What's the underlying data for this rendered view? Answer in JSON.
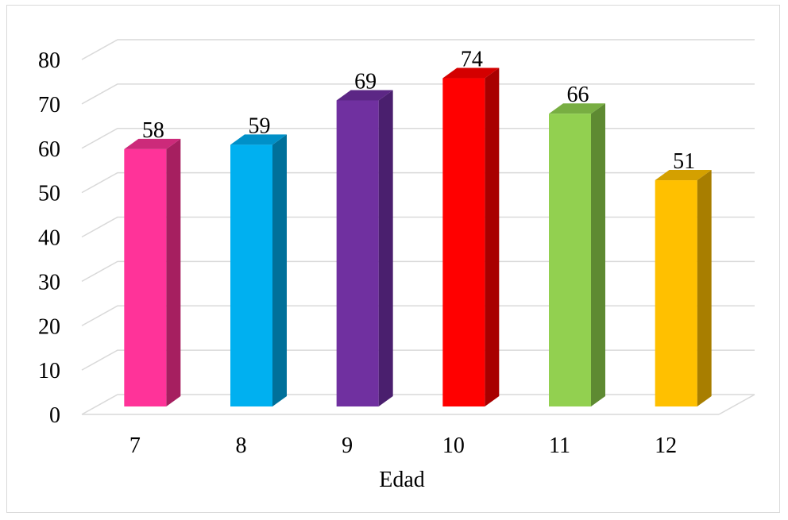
{
  "chart_data": {
    "type": "bar",
    "title": "",
    "xlabel": "Edad",
    "ylabel": "",
    "categories": [
      "7",
      "8",
      "9",
      "10",
      "11",
      "12"
    ],
    "values": [
      58,
      59,
      69,
      74,
      66,
      51
    ],
    "data_labels": [
      "58",
      "59",
      "69",
      "74",
      "66",
      "51"
    ],
    "yticks": [
      "0",
      "10",
      "20",
      "30",
      "40",
      "50",
      "60",
      "70",
      "80"
    ],
    "ylim": [
      0,
      80
    ],
    "grid": true,
    "legend": "none",
    "style": "3d-column",
    "colors": [
      "#FF3399",
      "#00B0F0",
      "#7030A0",
      "#FF0000",
      "#92D050",
      "#FFC000"
    ],
    "side_colors": [
      "#A61F60",
      "#00709A",
      "#4A1F6E",
      "#A80000",
      "#5E8A32",
      "#A87E00"
    ],
    "top_colors": [
      "#CC2A7A",
      "#0090C8",
      "#5C2785",
      "#D40000",
      "#78AE42",
      "#D4A000"
    ]
  }
}
